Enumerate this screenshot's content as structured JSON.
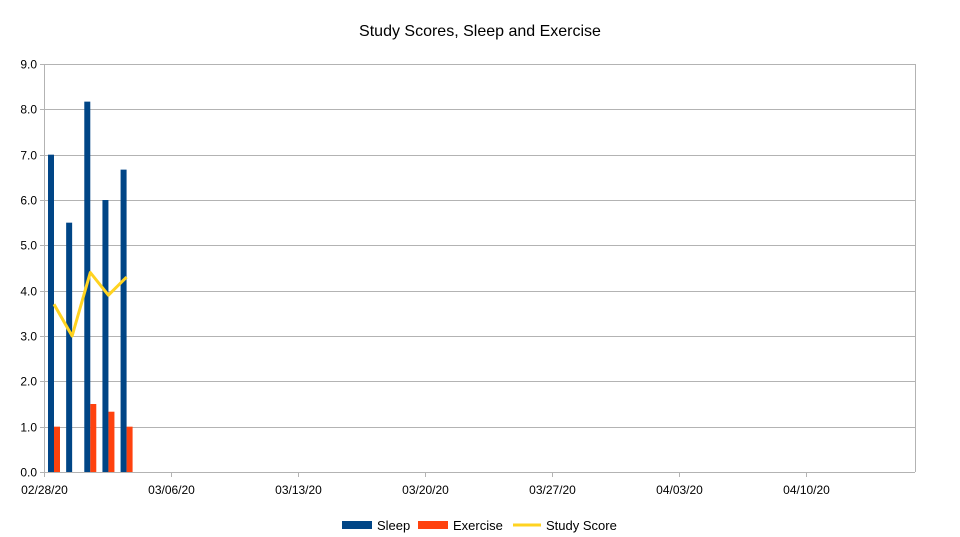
{
  "chart_data": {
    "type": "bar",
    "title": "Study Scores, Sleep and Exercise",
    "xlabel": "",
    "ylabel": "",
    "x_axis": {
      "kind": "date",
      "min": "02/28/20",
      "max": "04/16/20",
      "ticks": [
        "02/28/20",
        "03/06/20",
        "03/13/20",
        "03/20/20",
        "03/27/20",
        "04/03/20",
        "04/10/20"
      ]
    },
    "y_axis": {
      "min": 0,
      "max": 9,
      "ticks": [
        "0.0",
        "1.0",
        "2.0",
        "3.0",
        "4.0",
        "5.0",
        "6.0",
        "7.0",
        "8.0",
        "9.0"
      ]
    },
    "grid": true,
    "legend_position": "bottom",
    "dates": [
      "02/28/20",
      "02/29/20",
      "03/01/20",
      "03/02/20",
      "03/03/20"
    ],
    "series": [
      {
        "name": "Sleep",
        "kind": "bar",
        "color": "#004586",
        "values": [
          7.0,
          5.5,
          8.17,
          6.0,
          6.67
        ]
      },
      {
        "name": "Exercise",
        "kind": "bar",
        "color": "#ff420e",
        "values": [
          1.0,
          0.0,
          1.5,
          1.33,
          1.0
        ]
      },
      {
        "name": "Study Score",
        "kind": "line",
        "color": "#ffd320",
        "values": [
          3.7,
          3.0,
          4.4,
          3.9,
          4.3
        ]
      }
    ]
  }
}
